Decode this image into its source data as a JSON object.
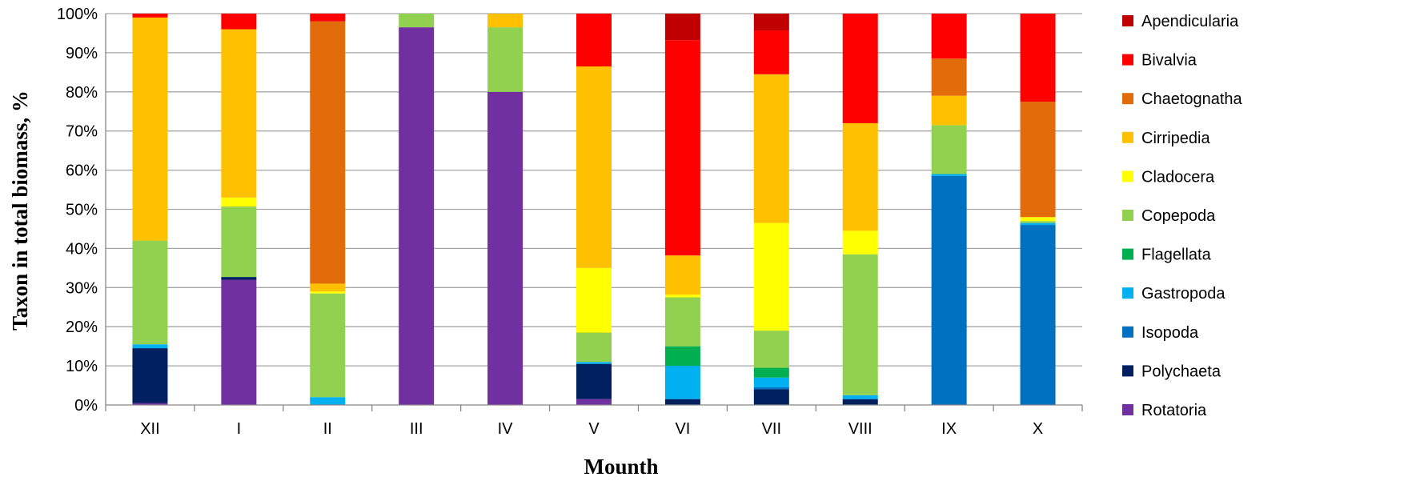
{
  "chart_data": {
    "type": "bar",
    "stacked": true,
    "xlabel": "Mounth",
    "ylabel": "Taxon in total biomass, %",
    "ylim": [
      0,
      100
    ],
    "y_ticks": [
      "0%",
      "10%",
      "20%",
      "30%",
      "40%",
      "50%",
      "60%",
      "70%",
      "80%",
      "90%",
      "100%"
    ],
    "grid": "horizontal",
    "legend_position": "right",
    "categories": [
      "XII",
      "I",
      "II",
      "III",
      "IV",
      "V",
      "VI",
      "VII",
      "VIII",
      "IX",
      "X"
    ],
    "series": [
      {
        "name": "Rotatoria",
        "color": "#7030A0",
        "values": [
          0.5,
          32,
          0,
          96.5,
          80,
          1.5,
          0,
          0,
          0,
          0,
          0
        ]
      },
      {
        "name": "Polychaeta",
        "color": "#002060",
        "values": [
          14,
          0.7,
          0,
          0,
          0,
          9,
          1.5,
          4,
          1.5,
          0,
          0
        ]
      },
      {
        "name": "Isopoda",
        "color": "#0070C0",
        "values": [
          0,
          0,
          0,
          0,
          0,
          0,
          0,
          0.5,
          0,
          58.5,
          46
        ]
      },
      {
        "name": "Gastropoda",
        "color": "#00B0F0",
        "values": [
          1,
          0,
          2,
          0,
          0,
          0.5,
          8.5,
          2.5,
          1,
          0.5,
          0.5
        ]
      },
      {
        "name": "Flagellata",
        "color": "#00B050",
        "values": [
          0,
          0,
          0,
          0,
          0,
          0,
          5,
          2.5,
          0,
          0,
          0
        ]
      },
      {
        "name": "Copepoda",
        "color": "#92D050",
        "values": [
          26.5,
          18,
          26.5,
          3.5,
          16.5,
          7.5,
          12.5,
          9.5,
          36,
          12.5,
          0.5
        ]
      },
      {
        "name": "Cladocera",
        "color": "#FFFF00",
        "values": [
          0,
          2.3,
          0.5,
          0,
          0,
          16.5,
          0.7,
          27.5,
          6,
          0,
          1
        ]
      },
      {
        "name": "Cirripedia",
        "color": "#FFC000",
        "values": [
          57,
          43,
          2,
          0,
          3.5,
          51.5,
          10,
          38,
          27.5,
          7.5,
          0
        ]
      },
      {
        "name": "Chaetognatha",
        "color": "#E36C0A",
        "values": [
          0,
          0,
          67,
          0,
          0,
          0,
          0,
          0,
          0,
          9.5,
          29.5
        ]
      },
      {
        "name": "Bivalvia",
        "color": "#FF0000",
        "values": [
          1,
          4,
          2,
          0,
          0,
          13.5,
          55,
          11.2,
          28,
          11.5,
          22.5
        ]
      },
      {
        "name": "Apendicularia",
        "color": "#C00000",
        "values": [
          0,
          0,
          0,
          0,
          0,
          0,
          6.8,
          4.3,
          0,
          0,
          0
        ]
      }
    ],
    "legend_order": [
      "Apendicularia",
      "Bivalvia",
      "Chaetognatha",
      "Cirripedia",
      "Cladocera",
      "Copepoda",
      "Flagellata",
      "Gastropoda",
      "Isopoda",
      "Polychaeta",
      "Rotatoria"
    ]
  }
}
